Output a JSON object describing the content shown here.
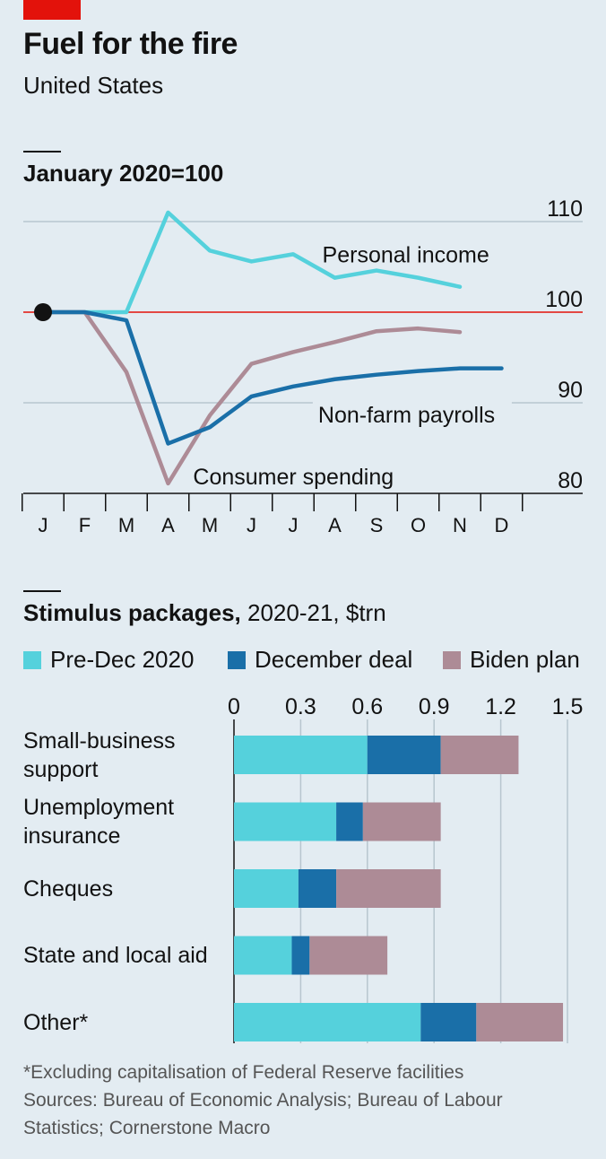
{
  "header": {
    "title": "Fuel for the fire",
    "subtitle": "United States"
  },
  "colors": {
    "personal_income": "#55d1dc",
    "consumer_spending": "#ad8b96",
    "non_farm_payrolls": "#1a6fa8",
    "pre_dec_2020": "#55d1dc",
    "december_deal": "#1a6fa8",
    "biden_plan": "#ad8b96",
    "reference_line": "#e3120b",
    "grid": "#b7c6cf",
    "brand_red": "#e3120b"
  },
  "chart_data": [
    {
      "type": "line",
      "title": "January 2020=100",
      "x": [
        "J",
        "F",
        "M",
        "A",
        "M",
        "J",
        "J",
        "A",
        "S",
        "O",
        "N",
        "D"
      ],
      "ylim": [
        80,
        110
      ],
      "yticks": [
        80,
        90,
        100,
        110
      ],
      "grid": true,
      "reference_value": 100,
      "series": [
        {
          "name": "Personal income",
          "key": "personal_income",
          "values": [
            100,
            100,
            100,
            111,
            106.8,
            105.6,
            106.4,
            103.8,
            104.6,
            103.8,
            102.8,
            null
          ]
        },
        {
          "name": "Consumer spending",
          "key": "consumer_spending",
          "values": [
            100,
            100,
            93.4,
            81.1,
            88.6,
            94.3,
            95.6,
            96.7,
            97.9,
            98.2,
            97.8,
            null
          ]
        },
        {
          "name": "Non-farm payrolls",
          "key": "non_farm_payrolls",
          "values": [
            100,
            100,
            99.1,
            85.5,
            87.3,
            90.7,
            91.8,
            92.6,
            93.1,
            93.5,
            93.8,
            93.8
          ]
        }
      ],
      "labels": [
        "Personal income",
        "Non-farm payrolls",
        "Consumer spending"
      ]
    },
    {
      "type": "bar",
      "orientation": "horizontal",
      "stacked": true,
      "title": "Stimulus packages,",
      "title_suffix": "2020-21, $trn",
      "categories": [
        "Small-business support",
        "Unemployment insurance",
        "Cheques",
        "State and local aid",
        "Other*"
      ],
      "category_lines": [
        [
          "Small-business",
          "support"
        ],
        [
          "Unemployment",
          "insurance"
        ],
        [
          "Cheques"
        ],
        [
          "State and local aid"
        ],
        [
          "Other*"
        ]
      ],
      "xlim": [
        0,
        1.5
      ],
      "xticks": [
        "0",
        "0.3",
        "0.6",
        "0.9",
        "1.2",
        "1.5"
      ],
      "grid": true,
      "legend_position": "top",
      "series": [
        {
          "name": "Pre-Dec 2020",
          "key": "pre_dec_2020",
          "values": [
            0.6,
            0.46,
            0.29,
            0.26,
            0.84
          ]
        },
        {
          "name": "December deal",
          "key": "december_deal",
          "values": [
            0.33,
            0.12,
            0.17,
            0.08,
            0.25
          ]
        },
        {
          "name": "Biden plan",
          "key": "biden_plan",
          "values": [
            0.35,
            0.35,
            0.47,
            0.35,
            0.39
          ]
        }
      ]
    }
  ],
  "footnotes": {
    "note": "*Excluding capitalisation of Federal Reserve facilities",
    "sources_line1": "Sources: Bureau of Economic Analysis; Bureau of Labour",
    "sources_line2": "Statistics; Cornerstone Macro"
  }
}
